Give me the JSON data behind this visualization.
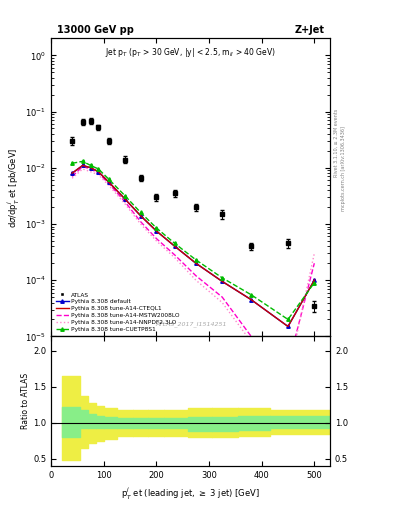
{
  "title_left": "13000 GeV pp",
  "title_right": "Z+Jet",
  "subtitle": "Jet p$_T$ (p$_T$ > 30 GeV, |y| < 2.5, m$_{ll}$ > 40 GeV)",
  "xlabel": "p$_T^j$ et (leading jet, $\\geq$ 3 jet) [GeV]",
  "ylabel": "d$\\sigma$/dp$_T^j$ et [pb/GeV]",
  "ylabel_ratio": "Ratio to ATLAS",
  "watermark": "ATLAS_2017_I1514251",
  "right_label1": "Rivet 3.1.10, ≥ 2.3M events",
  "right_label2": "mcplots.cern.ch [arXiv:1306.3436]",
  "atlas_x": [
    40,
    60,
    75,
    90,
    110,
    140,
    170,
    200,
    235,
    275,
    325,
    380,
    450,
    500
  ],
  "atlas_y": [
    0.03,
    0.065,
    0.068,
    0.052,
    0.03,
    0.014,
    0.0065,
    0.003,
    0.0035,
    0.002,
    0.0015,
    0.0004,
    0.00045,
    3.5e-05
  ],
  "atlas_yerr": [
    0.005,
    0.008,
    0.008,
    0.006,
    0.004,
    0.002,
    0.0008,
    0.0004,
    0.0005,
    0.0003,
    0.0003,
    6e-05,
    8e-05,
    8e-06
  ],
  "py_x": [
    40,
    60,
    75,
    90,
    110,
    140,
    170,
    200,
    235,
    275,
    325,
    380,
    450,
    500
  ],
  "py_default_y": [
    0.008,
    0.011,
    0.01,
    0.0085,
    0.0055,
    0.0028,
    0.0014,
    0.00075,
    0.0004,
    0.0002,
    9.5e-05,
    4.5e-05,
    1.5e-05,
    0.0001
  ],
  "py_cteq_y": [
    0.008,
    0.011,
    0.01,
    0.0085,
    0.0055,
    0.0028,
    0.0014,
    0.00075,
    0.0004,
    0.0002,
    9.5e-05,
    4.5e-05,
    1.5e-05,
    0.0001
  ],
  "py_mstw_y": [
    0.007,
    0.0105,
    0.0095,
    0.008,
    0.0052,
    0.0025,
    0.0011,
    0.00055,
    0.00028,
    0.00012,
    5e-05,
    1e-05,
    3e-06,
    0.0002
  ],
  "py_nnpdf_y": [
    0.0065,
    0.0095,
    0.0085,
    0.0075,
    0.0048,
    0.0023,
    0.001,
    0.0005,
    0.00025,
    0.0001,
    4e-05,
    8e-06,
    2e-06,
    0.0003
  ],
  "py_cuetp_y": [
    0.012,
    0.013,
    0.011,
    0.0095,
    0.0062,
    0.0032,
    0.0016,
    0.00085,
    0.00045,
    0.00023,
    0.00011,
    5.5e-05,
    2e-05,
    9e-05
  ],
  "ratio_edges": [
    20,
    55,
    70,
    85,
    100,
    125,
    155,
    185,
    215,
    260,
    305,
    355,
    415,
    530
  ],
  "ratio_green_lo": [
    0.8,
    0.92,
    0.93,
    0.93,
    0.93,
    0.93,
    0.93,
    0.93,
    0.93,
    0.88,
    0.88,
    0.9,
    0.92
  ],
  "ratio_green_hi": [
    1.22,
    1.18,
    1.12,
    1.1,
    1.08,
    1.06,
    1.06,
    1.06,
    1.06,
    1.08,
    1.08,
    1.1,
    1.1
  ],
  "ratio_yellow_lo": [
    0.48,
    0.65,
    0.72,
    0.75,
    0.78,
    0.82,
    0.82,
    0.82,
    0.82,
    0.8,
    0.8,
    0.82,
    0.85
  ],
  "ratio_yellow_hi": [
    1.65,
    1.37,
    1.28,
    1.23,
    1.2,
    1.18,
    1.18,
    1.18,
    1.18,
    1.2,
    1.2,
    1.2,
    1.18
  ],
  "color_atlas": "#000000",
  "color_default": "#0000cc",
  "color_cteq": "#cc0000",
  "color_mstw": "#ff00cc",
  "color_nnpdf": "#ff88cc",
  "color_cuetp": "#00bb00",
  "color_green_band": "#88ee88",
  "color_yellow_band": "#eeee44",
  "xlim": [
    0,
    530
  ],
  "ylim_main": [
    1e-05,
    2.0
  ],
  "ylim_ratio": [
    0.4,
    2.2
  ],
  "ratio_yticks": [
    0.5,
    1.0,
    1.5,
    2.0
  ]
}
